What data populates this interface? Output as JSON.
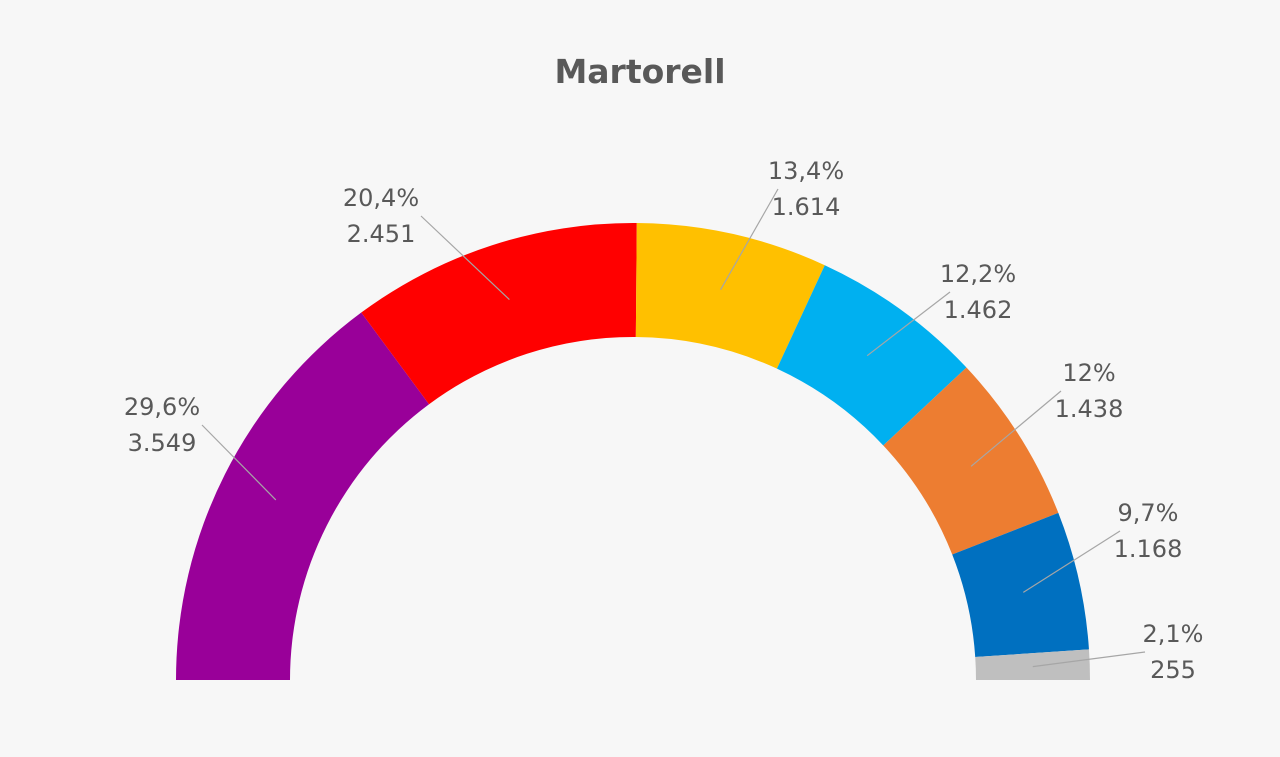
{
  "chart_data": {
    "type": "pie",
    "title": "Martorell",
    "slices": [
      {
        "percent_label": "29,6%",
        "votes_label": "3.549",
        "value": 3549,
        "color": "#990099"
      },
      {
        "percent_label": "20,4%",
        "votes_label": "2.451",
        "value": 2451,
        "color": "#ff0000"
      },
      {
        "percent_label": "13,4%",
        "votes_label": "1.614",
        "value": 1614,
        "color": "#ffc000"
      },
      {
        "percent_label": "12,2%",
        "votes_label": "1.462",
        "value": 1462,
        "color": "#00b0f0"
      },
      {
        "percent_label": "12%",
        "votes_label": "1.438",
        "value": 1438,
        "color": "#ed7d31"
      },
      {
        "percent_label": "9,7%",
        "votes_label": "1.168",
        "value": 1168,
        "color": "#0070c0"
      },
      {
        "percent_label": "2,1%",
        "votes_label": "255",
        "value": 255,
        "color": "#bfbfbf"
      }
    ]
  }
}
